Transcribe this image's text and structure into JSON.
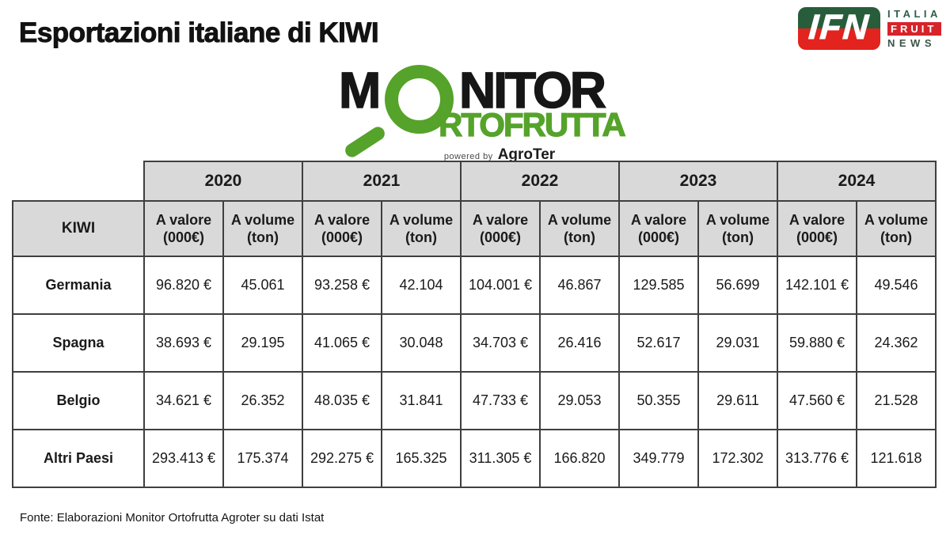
{
  "header": {
    "title": "Esportazioni italiane di KIWI"
  },
  "ifn_logo": {
    "acronym": "IFN",
    "words": [
      "ITALIA",
      "FRUIT",
      "NEWS"
    ],
    "colors": {
      "green": "#275d3b",
      "red": "#e2231e",
      "fruit_box_red": "#d7232a"
    }
  },
  "monitor_logo": {
    "line1_prefix": "M",
    "line1_suffix": "NITOR",
    "line2": "RTOFRUTTA",
    "powered_by": "powered by",
    "brand": "AgroTer",
    "green": "#55a32a"
  },
  "table_style": {
    "header_bg": "#d9d9d9",
    "border": "#3f3f3f"
  },
  "chart_data": {
    "type": "table",
    "title": "Esportazioni italiane di KIWI",
    "row_header": "KIWI",
    "years": [
      "2020",
      "2021",
      "2022",
      "2023",
      "2024"
    ],
    "sub_columns": [
      {
        "label": "A valore",
        "unit": "(000€)"
      },
      {
        "label": "A volume",
        "unit": "(ton)"
      }
    ],
    "rows": [
      {
        "label": "Germania",
        "values": [
          "96.820 €",
          "45.061",
          "93.258 €",
          "42.104",
          "104.001 €",
          "46.867",
          "129.585",
          "56.699",
          "142.101 €",
          "49.546"
        ]
      },
      {
        "label": "Spagna",
        "values": [
          "38.693 €",
          "29.195",
          "41.065 €",
          "30.048",
          "34.703 €",
          "26.416",
          "52.617",
          "29.031",
          "59.880 €",
          "24.362"
        ]
      },
      {
        "label": "Belgio",
        "values": [
          "34.621 €",
          "26.352",
          "48.035 €",
          "31.841",
          "47.733 €",
          "29.053",
          "50.355",
          "29.611",
          "47.560 €",
          "21.528"
        ]
      },
      {
        "label": "Altri Paesi",
        "values": [
          "293.413 €",
          "175.374",
          "292.275 €",
          "165.325",
          "311.305 €",
          "166.820",
          "349.779",
          "172.302",
          "313.776 €",
          "121.618"
        ]
      }
    ],
    "source": "Fonte: Elaborazioni Monitor Ortofrutta Agroter su dati Istat"
  },
  "footer": {
    "source": "Fonte: Elaborazioni Monitor Ortofrutta Agroter su dati Istat"
  }
}
